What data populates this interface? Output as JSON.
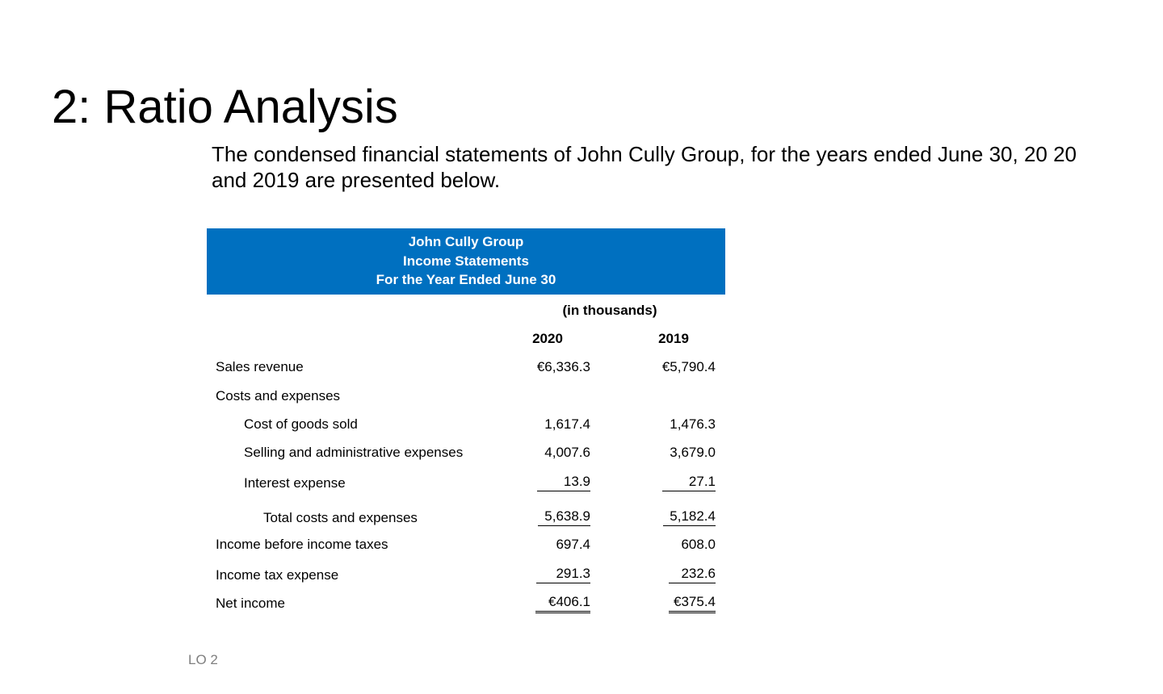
{
  "title": "2: Ratio Analysis",
  "intro": "The condensed financial statements of John Cully Group, for the years ended June 30, 20 20 and 2019 are presented below.",
  "statement": {
    "header": [
      "John Cully Group",
      "Income Statements",
      "For the Year Ended June 30"
    ],
    "units": "(in thousands)",
    "years": [
      "2020",
      "2019"
    ],
    "rows": [
      {
        "label": "Sales revenue",
        "v2020": "€6,336.3",
        "v2019": "€5,790.4"
      },
      {
        "label": "Costs and expenses",
        "v2020": "",
        "v2019": ""
      },
      {
        "label": "Cost of goods sold",
        "v2020": "1,617.4",
        "v2019": "1,476.3"
      },
      {
        "label": "Selling and administrative expenses",
        "v2020": "4,007.6",
        "v2019": "3,679.0"
      },
      {
        "label": "Interest expense",
        "v2020": "13.9",
        "v2019": "27.1"
      },
      {
        "label": "Total costs and expenses",
        "v2020": "5,638.9",
        "v2019": "5,182.4"
      },
      {
        "label": "Income before income taxes",
        "v2020": "697.4",
        "v2019": "608.0"
      },
      {
        "label": "Income tax expense",
        "v2020": "291.3",
        "v2019": "232.6"
      },
      {
        "label": "Net income",
        "v2020": "€406.1",
        "v2019": "€375.4"
      }
    ]
  },
  "footer": "LO 2"
}
